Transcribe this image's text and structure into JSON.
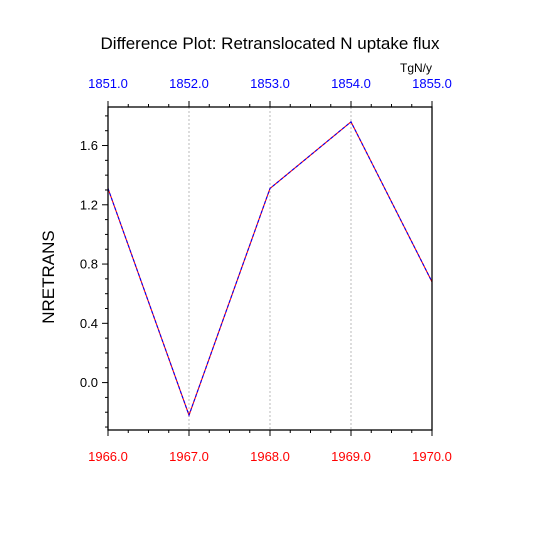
{
  "chart_data": {
    "type": "line",
    "title": "Difference Plot: Retranslocated N uptake flux",
    "units_label": "TgN/y",
    "ylabel": "NRETRANS",
    "xlabel": "",
    "x": [
      1966.0,
      1967.0,
      1968.0,
      1969.0,
      1970.0
    ],
    "x_tick_labels_bottom": [
      "1966.0",
      "1967.0",
      "1968.0",
      "1969.0",
      "1970.0"
    ],
    "x_tick_labels_top": [
      "1851.0",
      "1852.0",
      "1853.0",
      "1854.0",
      "1855.0"
    ],
    "xlim": [
      1966.0,
      1970.0
    ],
    "ylim": [
      -0.32,
      1.86
    ],
    "y_ticks": [
      0.0,
      0.4,
      0.8,
      1.2,
      1.6
    ],
    "y_tick_labels": [
      "0.0",
      "0.4",
      "0.8",
      "1.2",
      "1.6"
    ],
    "y_minor_step": 0.1,
    "grid": "vertical dotted at x ticks",
    "series": [
      {
        "values": [
          1.31,
          -0.22,
          1.31,
          1.76,
          0.68
        ],
        "color": "#ff0000",
        "style": "solid"
      },
      {
        "values": [
          1.31,
          -0.22,
          1.31,
          1.76,
          0.68
        ],
        "color": "#0000ff",
        "style": "dashed"
      }
    ],
    "colors": {
      "bottom_tick_labels": "#ff0000",
      "top_tick_labels": "#0000ff",
      "grid": "#aaaaaa",
      "axis": "#000000"
    }
  }
}
